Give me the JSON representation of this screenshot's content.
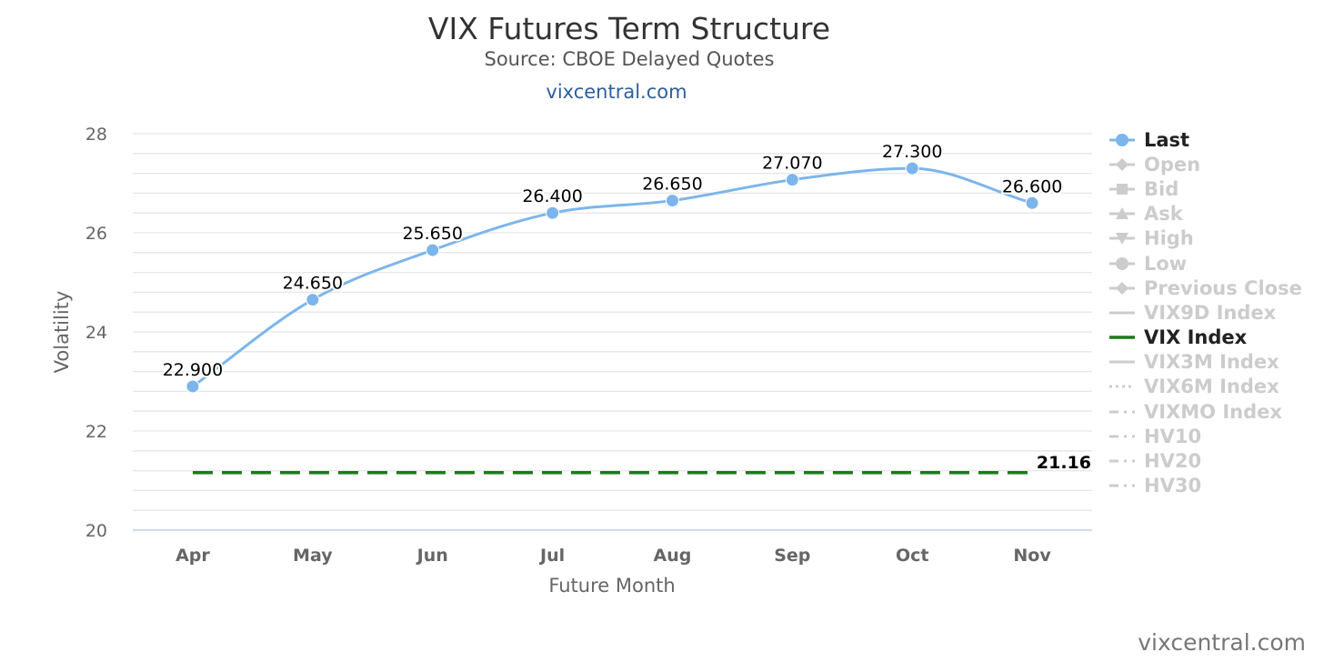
{
  "title": "VIX Futures Term Structure",
  "subtitle": "Source: CBOE Delayed Quotes",
  "site_link": "vixcentral.com",
  "watermark": "vixcentral.com",
  "legend": [
    {
      "label": "Last",
      "symbol": "circle",
      "line": "solid",
      "active": true,
      "color": "#7cb5ec"
    },
    {
      "label": "Open",
      "symbol": "diamond",
      "line": "solid",
      "active": false,
      "color": "#cccccc"
    },
    {
      "label": "Bid",
      "symbol": "square",
      "line": "solid",
      "active": false,
      "color": "#cccccc"
    },
    {
      "label": "Ask",
      "symbol": "triangle",
      "line": "solid",
      "active": false,
      "color": "#cccccc"
    },
    {
      "label": "High",
      "symbol": "triangle-down",
      "line": "solid",
      "active": false,
      "color": "#cccccc"
    },
    {
      "label": "Low",
      "symbol": "circle",
      "line": "solid",
      "active": false,
      "color": "#cccccc"
    },
    {
      "label": "Previous Close",
      "symbol": "diamond",
      "line": "solid",
      "active": false,
      "color": "#cccccc"
    },
    {
      "label": "VIX9D Index",
      "symbol": "none",
      "line": "solid",
      "active": false,
      "color": "#cccccc"
    },
    {
      "label": "VIX Index",
      "symbol": "none",
      "line": "solid",
      "active": true,
      "color": "#1a7a1a"
    },
    {
      "label": "VIX3M Index",
      "symbol": "none",
      "line": "solid",
      "active": false,
      "color": "#cccccc"
    },
    {
      "label": "VIX6M Index",
      "symbol": "none",
      "line": "dotted",
      "active": false,
      "color": "#cccccc"
    },
    {
      "label": "VIXMO Index",
      "symbol": "none",
      "line": "dashdot",
      "active": false,
      "color": "#cccccc"
    },
    {
      "label": "HV10",
      "symbol": "none",
      "line": "dashdot",
      "active": false,
      "color": "#cccccc"
    },
    {
      "label": "HV20",
      "symbol": "none",
      "line": "dashdot",
      "active": false,
      "color": "#cccccc"
    },
    {
      "label": "HV30",
      "symbol": "none",
      "line": "dashdot",
      "active": false,
      "color": "#cccccc"
    }
  ],
  "chart_data": {
    "type": "line",
    "categories": [
      "Apr",
      "May",
      "Jun",
      "Jul",
      "Aug",
      "Sep",
      "Oct",
      "Nov"
    ],
    "series": [
      {
        "name": "Last",
        "values": [
          22.9,
          24.65,
          25.65,
          26.4,
          26.65,
          27.07,
          27.3,
          26.6
        ],
        "labels": [
          "22.900",
          "24.650",
          "25.650",
          "26.400",
          "26.650",
          "27.070",
          "27.300",
          "26.600"
        ],
        "color": "#7cb5ec",
        "style": "smooth-line-with-markers"
      },
      {
        "name": "VIX Index",
        "values": [
          21.16,
          21.16,
          21.16,
          21.16,
          21.16,
          21.16,
          21.16,
          21.16
        ],
        "end_label": "21.16",
        "color": "#1a7a1a",
        "style": "dashed"
      }
    ],
    "xlabel": "Future Month",
    "ylabel": "Volatility",
    "ylim": [
      20,
      28
    ],
    "yticks": [
      20,
      22,
      24,
      26,
      28
    ],
    "minor_gridlines": true,
    "legend_position": "right"
  }
}
